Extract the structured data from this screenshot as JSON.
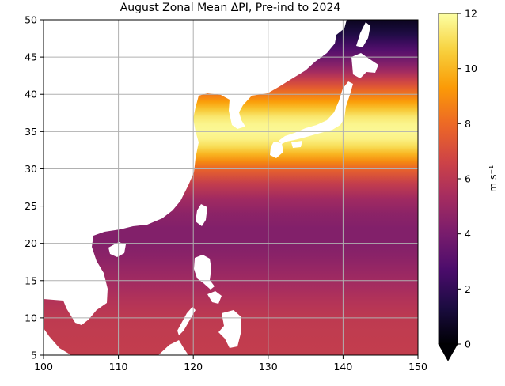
{
  "figure": {
    "title": "August Zonal Mean ΔPI, Pre-ind to 2024"
  },
  "chart_data": {
    "type": "heatmap",
    "title": "August Zonal Mean ΔPI, Pre-ind to 2024",
    "x_ticks": [
      "100",
      "110",
      "120",
      "130",
      "140",
      "150"
    ],
    "y_ticks": [
      "5",
      "10",
      "15",
      "20",
      "25",
      "30",
      "35",
      "40",
      "45",
      "50"
    ],
    "xlim": [
      100,
      150
    ],
    "ylim": [
      5,
      50
    ],
    "grid": true,
    "colormap": "inferno",
    "colorbar": {
      "label": "m s⁻¹",
      "ticks": [
        "0",
        "2",
        "4",
        "6",
        "8",
        "10",
        "12"
      ],
      "range": [
        0,
        12
      ],
      "extend": "min"
    },
    "zonal_mean_profile": {
      "lat": [
        5,
        8,
        10,
        12,
        14,
        16,
        18,
        20,
        22,
        24,
        26,
        28,
        30,
        31,
        32,
        33,
        34,
        35,
        36,
        37,
        38,
        39,
        40,
        41,
        42,
        43,
        44,
        45,
        46,
        47,
        48,
        49,
        50
      ],
      "value": [
        6.3,
        6.2,
        6.1,
        5.8,
        5.4,
        5.0,
        4.6,
        4.3,
        4.3,
        4.6,
        5.2,
        6.3,
        7.8,
        8.9,
        10.0,
        11.0,
        11.6,
        11.8,
        11.7,
        11.3,
        10.4,
        9.4,
        8.4,
        7.4,
        6.4,
        5.3,
        4.4,
        3.6,
        2.9,
        2.2,
        1.5,
        1.0,
        0.6
      ]
    },
    "colors": {
      "inferno_stops": [
        "#000004",
        "#1b0c41",
        "#4a0c6b",
        "#781c6d",
        "#a52c60",
        "#cf4446",
        "#ed6925",
        "#fb9b06",
        "#f7d13d",
        "#fcffa4"
      ]
    }
  }
}
